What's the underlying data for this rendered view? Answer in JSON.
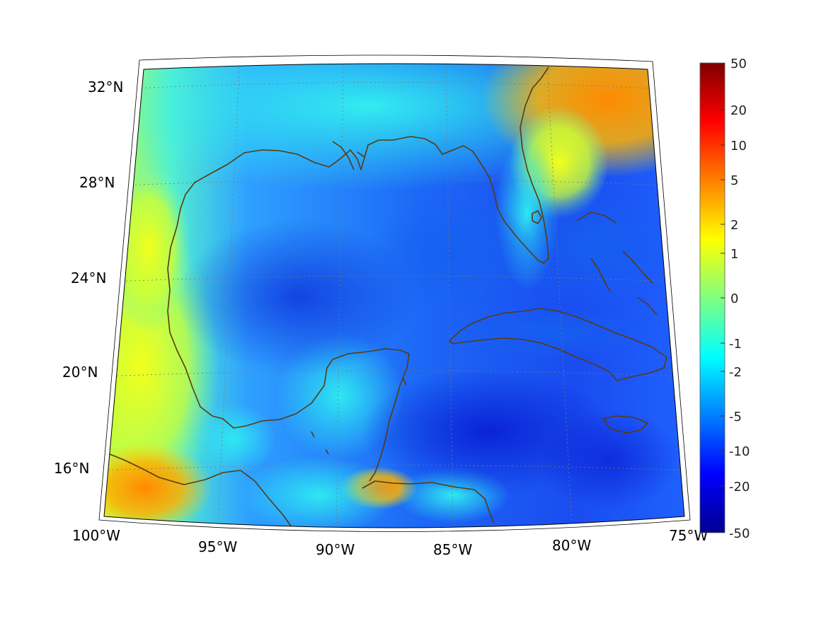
{
  "map": {
    "projection": "conic",
    "region": "Gulf of Mexico and western Caribbean",
    "lon_labels": [
      "100°W",
      "95°W",
      "90°W",
      "85°W",
      "80°W",
      "75°W"
    ],
    "lat_labels": [
      "16°N",
      "20°N",
      "24°N",
      "28°N",
      "32°N"
    ],
    "coastline_color": "#5a3a10",
    "graticule": "dotted"
  },
  "colorbar": {
    "colormap": "jet",
    "tick_labels": [
      "50",
      "20",
      "10",
      "5",
      "2",
      "1",
      "0",
      "-1",
      "-2",
      "-5",
      "-10",
      "-20",
      "-50"
    ],
    "range": [
      -50,
      50
    ],
    "scale": "symmetric log-like"
  },
  "colors": {
    "deep_blue": "#0a1fd0",
    "blue": "#1f5cff",
    "cyan": "#25e6f5",
    "yellow": "#f0ff20",
    "orange": "#ff8a00"
  }
}
